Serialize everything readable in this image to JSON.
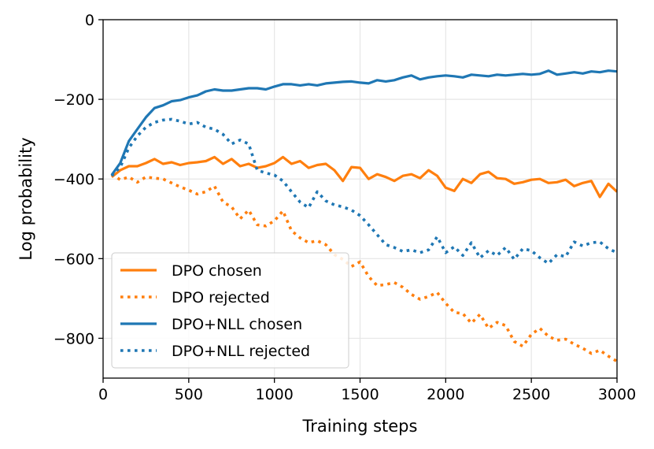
{
  "chart_data": {
    "type": "line",
    "title": "",
    "xlabel": "Training steps",
    "ylabel": "Log probability",
    "xlim": [
      0,
      3000
    ],
    "ylim": [
      -900,
      0
    ],
    "xticks": [
      0,
      500,
      1000,
      1500,
      2000,
      2500,
      3000
    ],
    "yticks": [
      0,
      -200,
      -400,
      -600,
      -800
    ],
    "xtick_labels": [
      "0",
      "500",
      "1000",
      "1500",
      "2000",
      "2500",
      "3000"
    ],
    "ytick_labels": [
      "0",
      "−200",
      "−400",
      "−600",
      "−800"
    ],
    "grid": true,
    "legend_position": "lower-left",
    "series": [
      {
        "name": "DPO chosen",
        "color": "#ff7f0e",
        "style": "solid",
        "x": [
          50,
          100,
          150,
          200,
          250,
          300,
          350,
          400,
          450,
          500,
          550,
          600,
          650,
          700,
          750,
          800,
          850,
          900,
          950,
          1000,
          1050,
          1100,
          1150,
          1200,
          1250,
          1300,
          1350,
          1400,
          1450,
          1500,
          1550,
          1600,
          1650,
          1700,
          1750,
          1800,
          1850,
          1900,
          1950,
          2000,
          2050,
          2100,
          2150,
          2200,
          2250,
          2300,
          2350,
          2400,
          2450,
          2500,
          2550,
          2600,
          2650,
          2700,
          2750,
          2800,
          2850,
          2900,
          2950,
          3000
        ],
        "y": [
          -395,
          -378,
          -368,
          -368,
          -360,
          -350,
          -362,
          -358,
          -365,
          -360,
          -358,
          -355,
          -345,
          -362,
          -350,
          -368,
          -362,
          -372,
          -368,
          -360,
          -345,
          -362,
          -355,
          -372,
          -365,
          -362,
          -378,
          -405,
          -370,
          -372,
          -400,
          -388,
          -395,
          -405,
          -392,
          -388,
          -398,
          -378,
          -392,
          -422,
          -430,
          -400,
          -410,
          -388,
          -382,
          -398,
          -400,
          -412,
          -408,
          -402,
          -400,
          -410,
          -408,
          -402,
          -418,
          -410,
          -405,
          -445,
          -412,
          -432
        ]
      },
      {
        "name": "DPO rejected",
        "color": "#ff7f0e",
        "style": "dotted",
        "x": [
          50,
          100,
          150,
          200,
          250,
          300,
          350,
          400,
          450,
          500,
          550,
          600,
          650,
          700,
          750,
          800,
          850,
          900,
          950,
          1000,
          1050,
          1100,
          1150,
          1200,
          1250,
          1300,
          1350,
          1400,
          1450,
          1500,
          1550,
          1600,
          1650,
          1700,
          1750,
          1800,
          1850,
          1900,
          1950,
          2000,
          2050,
          2100,
          2150,
          2200,
          2250,
          2300,
          2350,
          2400,
          2450,
          2500,
          2550,
          2600,
          2650,
          2700,
          2750,
          2800,
          2850,
          2900,
          2950,
          3000
        ],
        "y": [
          -388,
          -402,
          -395,
          -408,
          -395,
          -398,
          -400,
          -410,
          -420,
          -428,
          -438,
          -432,
          -418,
          -458,
          -470,
          -500,
          -478,
          -515,
          -518,
          -505,
          -480,
          -530,
          -548,
          -560,
          -555,
          -565,
          -590,
          -602,
          -620,
          -608,
          -645,
          -668,
          -665,
          -660,
          -672,
          -690,
          -702,
          -695,
          -685,
          -712,
          -735,
          -738,
          -762,
          -740,
          -775,
          -760,
          -768,
          -808,
          -820,
          -790,
          -775,
          -795,
          -805,
          -802,
          -815,
          -825,
          -838,
          -830,
          -845,
          -858
        ]
      },
      {
        "name": "DPO+NLL chosen",
        "color": "#1f77b4",
        "style": "solid",
        "x": [
          50,
          100,
          150,
          200,
          250,
          300,
          350,
          400,
          450,
          500,
          550,
          600,
          650,
          700,
          750,
          800,
          850,
          900,
          950,
          1000,
          1050,
          1100,
          1150,
          1200,
          1250,
          1300,
          1350,
          1400,
          1450,
          1500,
          1550,
          1600,
          1650,
          1700,
          1750,
          1800,
          1850,
          1900,
          1950,
          2000,
          2050,
          2100,
          2150,
          2200,
          2250,
          2300,
          2350,
          2400,
          2450,
          2500,
          2550,
          2600,
          2650,
          2700,
          2750,
          2800,
          2850,
          2900,
          2950,
          3000
        ],
        "y": [
          -390,
          -360,
          -305,
          -275,
          -245,
          -222,
          -215,
          -205,
          -202,
          -195,
          -190,
          -180,
          -175,
          -178,
          -178,
          -175,
          -172,
          -172,
          -175,
          -168,
          -162,
          -162,
          -165,
          -162,
          -165,
          -160,
          -158,
          -156,
          -155,
          -158,
          -160,
          -152,
          -155,
          -152,
          -145,
          -140,
          -150,
          -145,
          -142,
          -140,
          -142,
          -145,
          -138,
          -140,
          -142,
          -138,
          -140,
          -138,
          -136,
          -138,
          -136,
          -128,
          -138,
          -135,
          -132,
          -135,
          -130,
          -132,
          -128,
          -130
        ]
      },
      {
        "name": "DPO+NLL rejected",
        "color": "#1f77b4",
        "style": "dotted",
        "x": [
          50,
          100,
          150,
          200,
          250,
          300,
          350,
          400,
          450,
          500,
          550,
          600,
          650,
          700,
          750,
          800,
          850,
          900,
          950,
          1000,
          1050,
          1100,
          1150,
          1200,
          1250,
          1300,
          1350,
          1400,
          1450,
          1500,
          1550,
          1600,
          1650,
          1700,
          1750,
          1800,
          1850,
          1900,
          1950,
          2000,
          2050,
          2100,
          2150,
          2200,
          2250,
          2300,
          2350,
          2400,
          2450,
          2500,
          2550,
          2600,
          2650,
          2700,
          2750,
          2800,
          2850,
          2900,
          2950,
          3000
        ],
        "y": [
          -392,
          -370,
          -322,
          -292,
          -270,
          -258,
          -252,
          -250,
          -255,
          -262,
          -258,
          -270,
          -275,
          -288,
          -312,
          -302,
          -312,
          -378,
          -385,
          -390,
          -405,
          -432,
          -458,
          -472,
          -432,
          -455,
          -465,
          -470,
          -478,
          -492,
          -515,
          -540,
          -565,
          -572,
          -582,
          -578,
          -585,
          -578,
          -545,
          -585,
          -570,
          -592,
          -560,
          -598,
          -580,
          -592,
          -572,
          -602,
          -575,
          -580,
          -598,
          -612,
          -590,
          -595,
          -558,
          -568,
          -560,
          -558,
          -575,
          -585
        ]
      }
    ]
  }
}
